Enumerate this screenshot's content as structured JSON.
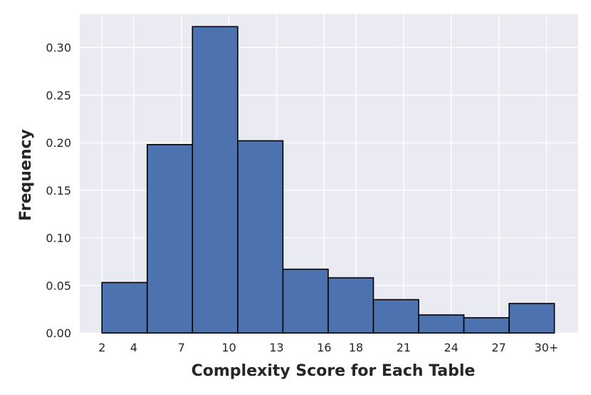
{
  "chart_data": {
    "type": "bar",
    "title": "",
    "xlabel": "Complexity Score for Each Table",
    "ylabel": "Frequency",
    "xlim": [
      0.6,
      32.0
    ],
    "ylim": [
      0,
      0.335
    ],
    "x_ticks": [
      {
        "value": 2,
        "label": "2"
      },
      {
        "value": 4,
        "label": "4"
      },
      {
        "value": 7,
        "label": "7"
      },
      {
        "value": 10,
        "label": "10"
      },
      {
        "value": 13,
        "label": "13"
      },
      {
        "value": 16,
        "label": "16"
      },
      {
        "value": 18,
        "label": "18"
      },
      {
        "value": 21,
        "label": "21"
      },
      {
        "value": 24,
        "label": "24"
      },
      {
        "value": 27,
        "label": "27"
      },
      {
        "value": 30,
        "label": "30+"
      }
    ],
    "y_ticks": [
      {
        "value": 0.0,
        "label": "0.00"
      },
      {
        "value": 0.05,
        "label": "0.05"
      },
      {
        "value": 0.1,
        "label": "0.10"
      },
      {
        "value": 0.15,
        "label": "0.15"
      },
      {
        "value": 0.2,
        "label": "0.20"
      },
      {
        "value": 0.25,
        "label": "0.25"
      },
      {
        "value": 0.3,
        "label": "0.30"
      }
    ],
    "bins": [
      {
        "start": 2.0,
        "end": 4.85,
        "value": 0.053
      },
      {
        "start": 4.85,
        "end": 7.7,
        "value": 0.198
      },
      {
        "start": 7.7,
        "end": 10.55,
        "value": 0.322
      },
      {
        "start": 10.55,
        "end": 13.4,
        "value": 0.202
      },
      {
        "start": 13.4,
        "end": 16.25,
        "value": 0.067
      },
      {
        "start": 16.25,
        "end": 19.1,
        "value": 0.058
      },
      {
        "start": 19.1,
        "end": 21.95,
        "value": 0.035
      },
      {
        "start": 21.95,
        "end": 24.8,
        "value": 0.019
      },
      {
        "start": 24.8,
        "end": 27.65,
        "value": 0.016
      },
      {
        "start": 27.65,
        "end": 30.5,
        "value": 0.031
      }
    ],
    "grid": true,
    "colors": {
      "bar_fill": "#4c72b0",
      "bar_edge": "#000000",
      "plot_background": "#eaeaf2",
      "grid": "#ffffff"
    }
  }
}
